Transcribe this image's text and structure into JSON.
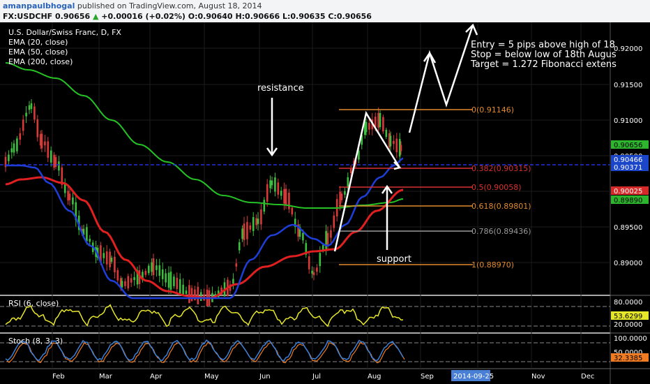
{
  "header": {
    "author": "amanpaulbhogal",
    "published_text": "published on TradingView.com, August 18, 2014",
    "symbol": "FX:USDCHF",
    "last": "0.90656",
    "change_arrow": "▲",
    "change": "+0.00016 (+0.02%)",
    "open": "O:0.90640",
    "high": "H:0.90666",
    "low": "L:0.90635",
    "close": "C:0.90656"
  },
  "legend": {
    "title": "U.S. Dollar/Swiss Franc, D, FX",
    "ema20": "EMA (20, close)",
    "ema50": "EMA (50, close)",
    "ema200": "EMA (200, close)"
  },
  "notes": {
    "entry": "Entry = 5 pips above high of 18",
    "stop": "Stop = below low of 18th Augus",
    "target": "Target = 1.272 Fibonacci extens",
    "resistance": "resistance",
    "support": "support"
  },
  "fib": [
    {
      "label": "0(0.91146)",
      "color": "#e08a2c"
    },
    {
      "label": "0.382(0.90315)",
      "color": "#d83030"
    },
    {
      "label": "0.5(0.90058)",
      "color": "#d83030"
    },
    {
      "label": "0.618(0.89801)",
      "color": "#e08a2c"
    },
    {
      "label": "0.786(0.89436)",
      "color": "#9a9a9a"
    },
    {
      "label": "1(0.88970)",
      "color": "#e08a2c"
    }
  ],
  "price_axis": {
    "ticks": [
      "0.92000",
      "0.91500",
      "0.91000",
      "0.90500",
      "0.90000",
      "0.89500",
      "0.89000"
    ],
    "badges": [
      {
        "label": "0.90656",
        "color": "#2db52d"
      },
      {
        "label": "0.90466",
        "color": "#1b46c9"
      },
      {
        "label": "0.90371",
        "color": "#1b46c9"
      },
      {
        "label": "0.90025",
        "color": "#d42a2a"
      },
      {
        "label": "0.89890",
        "color": "#2db52d"
      }
    ]
  },
  "rsi": {
    "label": "RSI (6, close)",
    "ticks": [
      "80.0000",
      "20.0000"
    ],
    "badge": "53.6299",
    "badge_color": "#e6e62a"
  },
  "stoch": {
    "label": "Stoch (8, 3, 3)",
    "ticks": [
      "100.0000",
      "50.0000"
    ],
    "badge": "32.3385",
    "badge_color": "#ef7b22"
  },
  "time_axis": {
    "labels": [
      "Feb",
      "Mar",
      "Apr",
      "May",
      "Jun",
      "Jul",
      "Aug",
      "Sep",
      "Nov",
      "Dec"
    ],
    "highlight": "2014-09-25"
  }
}
